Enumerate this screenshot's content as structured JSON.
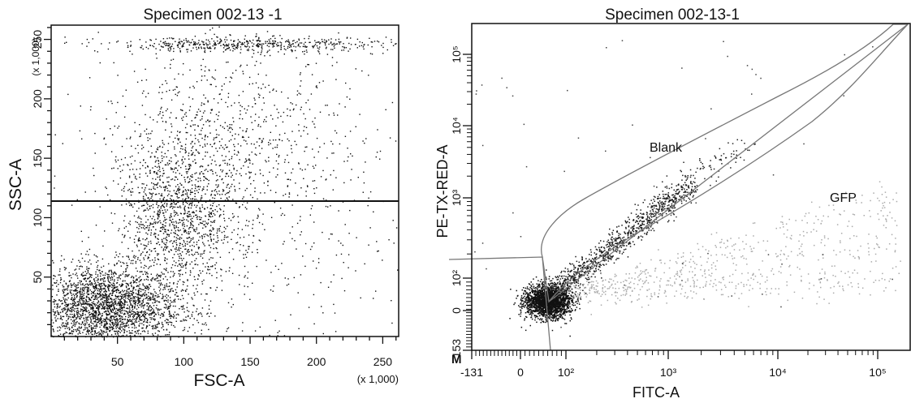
{
  "chart_data": [
    {
      "type": "scatter",
      "title": "Specimen  002-13 -1",
      "xlabel": "FSC-A",
      "ylabel": "SSC-A",
      "x_scale_note": "(x 1,000)",
      "y_scale_note": "(x 1,000)",
      "xlim": [
        0,
        262
      ],
      "ylim": [
        0,
        262
      ],
      "x_ticks": [
        "50",
        "100",
        "150",
        "200",
        "250"
      ],
      "y_ticks": [
        "50",
        "100",
        "150",
        "200",
        "250"
      ],
      "threshold_line_y": 113,
      "grid": false,
      "density_clusters": [
        {
          "center": [
            40,
            25
          ],
          "spread": [
            28,
            18
          ],
          "count": 2600
        },
        {
          "center": [
            95,
            100
          ],
          "spread": [
            22,
            35
          ],
          "count": 1300
        },
        {
          "center": [
            130,
            160
          ],
          "spread": [
            45,
            45
          ],
          "count": 700
        },
        {
          "center": [
            150,
            246
          ],
          "spread": [
            55,
            3
          ],
          "count": 500
        },
        {
          "center": [
            160,
            120
          ],
          "spread": [
            80,
            80
          ],
          "count": 500
        }
      ]
    },
    {
      "type": "scatter",
      "title": "Specimen  002-13-1",
      "xlabel": "FITC-A",
      "ylabel": "PE-TX-RED-A",
      "x_scale": "logicle",
      "y_scale": "logicle",
      "xlim": [
        -131,
        262143
      ],
      "ylim": [
        -153,
        262143
      ],
      "x_ticks": [
        "-131",
        "0",
        "10²",
        "10³",
        "10⁴",
        "10⁵"
      ],
      "y_ticks": [
        "-153",
        "0",
        "10²",
        "10³",
        "10⁴",
        "10⁵"
      ],
      "gates": [
        {
          "name": "Blank"
        },
        {
          "name": "GFP"
        }
      ],
      "corner_label": "M",
      "grid": false,
      "density_clusters": [
        {
          "name": "Blank",
          "center": [
            60,
            30
          ],
          "spread": "dense",
          "count": 2200
        },
        {
          "name": "Blank",
          "center": [
            400,
            900
          ],
          "spread": "diagonal",
          "count": 900
        },
        {
          "name": "GFP",
          "center": [
            3000,
            60
          ],
          "spread": "sparse",
          "count": 700
        }
      ]
    }
  ]
}
